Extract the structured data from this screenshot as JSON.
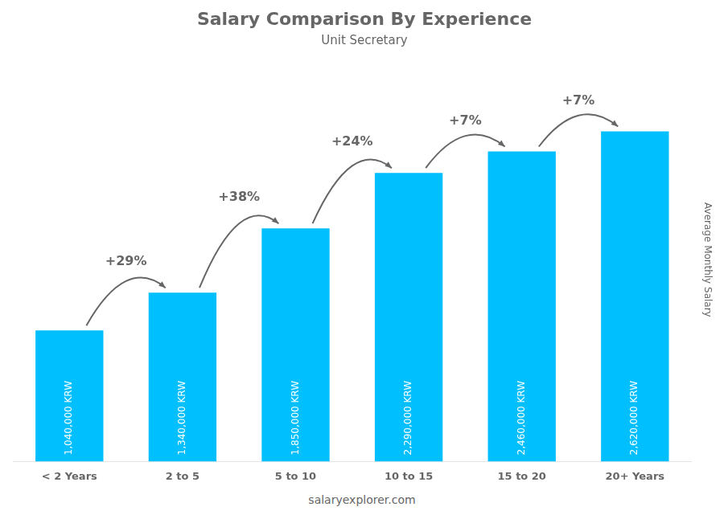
{
  "chart_data": {
    "type": "bar",
    "title": "Salary Comparison By Experience",
    "subtitle": "Unit Secretary",
    "categories": [
      "< 2 Years",
      "2 to 5",
      "5 to 10",
      "10 to 15",
      "15 to 20",
      "20+ Years"
    ],
    "values": [
      1040000,
      1340000,
      1850000,
      2290000,
      2460000,
      2620000
    ],
    "value_labels": [
      "1,040,000 KRW",
      "1,340,000 KRW",
      "1,850,000 KRW",
      "2,290,000 KRW",
      "2,460,000 KRW",
      "2,620,000 KRW"
    ],
    "data_labels": true,
    "annotations": [
      "+29%",
      "+38%",
      "+24%",
      "+7%",
      "+7%"
    ],
    "ylabel": "Average Monthly Salary",
    "footer": "salaryexplorer.com",
    "color": "#00BFFF",
    "ylim": [
      0,
      3200000
    ],
    "tick_labels": "x",
    "grid": false
  }
}
